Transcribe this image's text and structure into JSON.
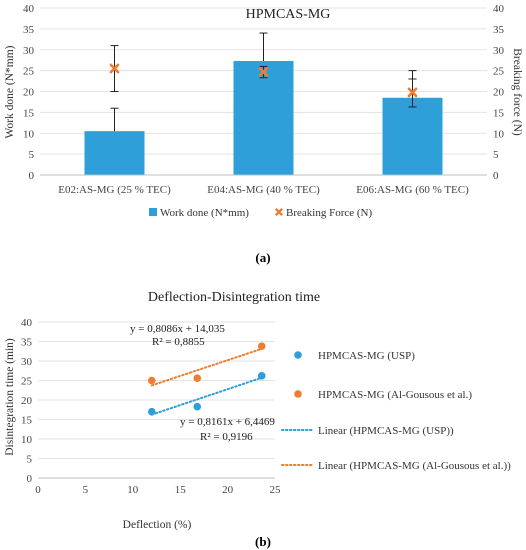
{
  "chart_data": [
    {
      "type": "bar",
      "title": "HPMCAS-MG",
      "categories": [
        "E02:AS-MG (25 % TEC)",
        "E04:AS-MG (40 % TEC)",
        "E06:AS-MG (60 % TEC)"
      ],
      "ylabel": "Work done (N*mm)",
      "y2label": "Breaking force (N)",
      "ylim": [
        0,
        40
      ],
      "y2lim": [
        0,
        40
      ],
      "yticks": [
        "0",
        "5",
        "10",
        "15",
        "20",
        "25",
        "30",
        "35",
        "40"
      ],
      "series": [
        {
          "name": "Work done (N*mm)",
          "kind": "bar",
          "color": "#2E9FD9",
          "values": [
            10.5,
            27.3,
            18.5
          ],
          "error_low": [
            10.5,
            27.3,
            18.5
          ],
          "error_high": [
            16,
            34,
            25
          ]
        },
        {
          "name": "Breaking Force (N)",
          "kind": "marker",
          "color": "#ED7D31",
          "values": [
            25.5,
            24.7,
            19.8
          ],
          "error_low": [
            20,
            23.3,
            16.3
          ],
          "error_high": [
            31,
            26,
            23
          ]
        }
      ],
      "legend": "bottom",
      "caption": "(a)"
    },
    {
      "type": "scatter",
      "title": "Deflection-Disintegration time",
      "xlabel": "Deflection (%)",
      "ylabel": "Disintegration time (min)",
      "xlim": [
        0,
        25
      ],
      "ylim": [
        0,
        40
      ],
      "xticks": [
        "0",
        "5",
        "10",
        "15",
        "20",
        "25"
      ],
      "yticks": [
        "0",
        "5",
        "10",
        "15",
        "20",
        "25",
        "30",
        "35",
        "40"
      ],
      "series": [
        {
          "name": "HPMCAS-MG (USP)",
          "color": "#2E9FD9",
          "x": [
            12.0,
            16.8,
            23.6
          ],
          "y": [
            17.0,
            18.3,
            26.2
          ]
        },
        {
          "name": "HPMCAS-MG (Al-Gousous et al.)",
          "color": "#ED7D31",
          "x": [
            12.0,
            16.8,
            23.6
          ],
          "y": [
            25.0,
            25.6,
            33.8
          ]
        }
      ],
      "trendlines": [
        {
          "name": "Linear (HPMCAS-MG (USP))",
          "color": "#2E9FD9",
          "slope": 0.8161,
          "intercept": 6.4469,
          "equation": "y = 0,8161x + 6,4469",
          "r2": "R² = 0,9196"
        },
        {
          "name": "Linear (HPMCAS-MG (Al-Gousous et al.))",
          "color": "#ED7D31",
          "slope": 0.8086,
          "intercept": 14.035,
          "equation": "y = 0,8086x + 14,035",
          "r2": "R² = 0,8855"
        }
      ],
      "legend": "right",
      "caption": "(b)"
    }
  ]
}
